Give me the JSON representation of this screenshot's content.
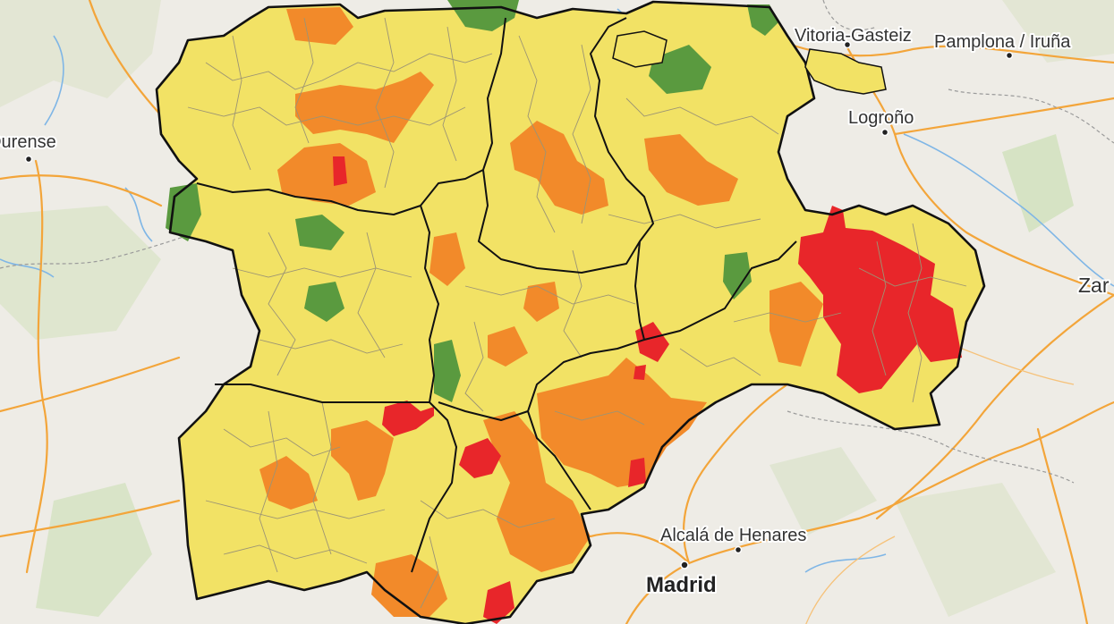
{
  "map": {
    "colors": {
      "low_risk": "#5a9a3f",
      "medium_risk": "#f2e265",
      "high_risk": "#f28a2a",
      "very_high_risk": "#e8262a",
      "background": "#eeece6",
      "roads": "#f3a53a",
      "water": "#7fb6e6",
      "region_border": "#111111"
    },
    "cities": {
      "vitoria": "Vitoria-Gasteiz",
      "pamplona": "Pamplona / Iruña",
      "logrono": "Logroño",
      "ourense": "Ourense",
      "zaragoza": "Zar",
      "alcala": "Alcalá de Henares",
      "madrid": "Madrid"
    }
  }
}
